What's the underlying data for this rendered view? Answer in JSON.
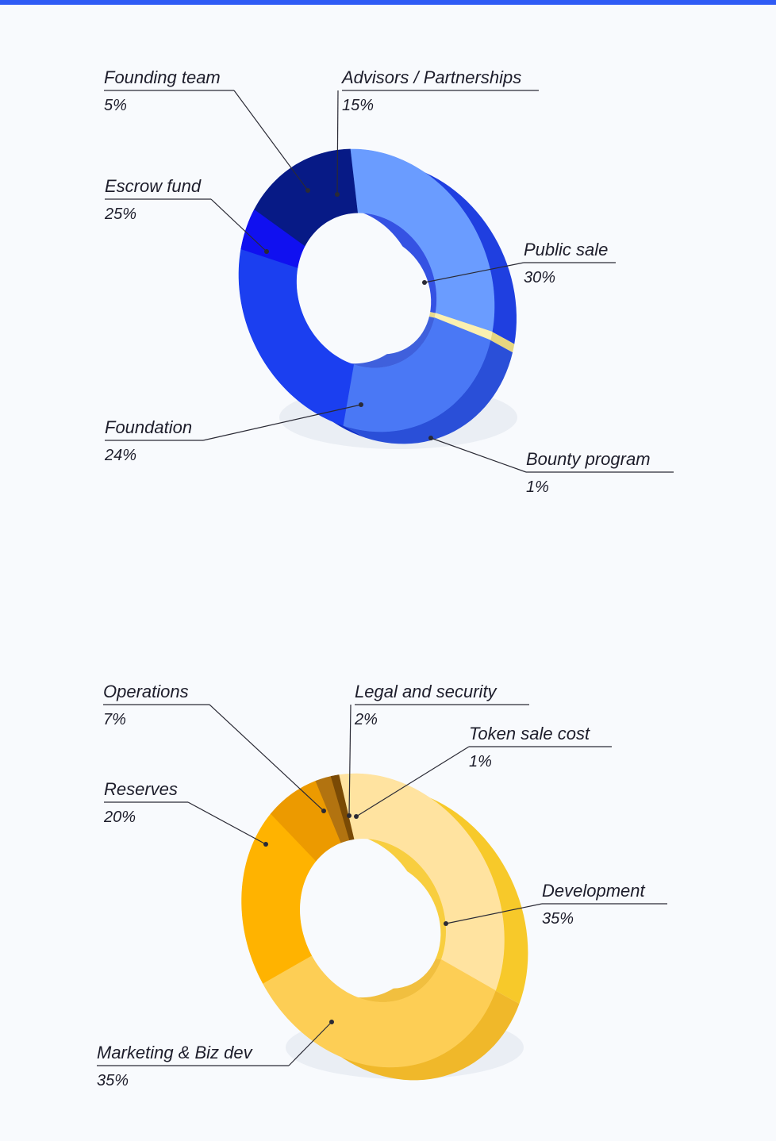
{
  "colors": {
    "top_bar": "#2f5bf5"
  },
  "chart_data": [
    {
      "type": "pie",
      "title": "",
      "slices": [
        {
          "label": "Public sale",
          "value": 30,
          "value_label": "30%",
          "color": "#6a9cff",
          "side": "#1f3fe0"
        },
        {
          "label": "Bounty program",
          "value": 1,
          "value_label": "1%",
          "color": "#fbf0b0",
          "side": "#e6d680"
        },
        {
          "label": "Foundation",
          "value": 24,
          "value_label": "24%",
          "color": "#4a78f5",
          "side": "#2a4fd8"
        },
        {
          "label": "Escrow fund",
          "value": 25,
          "value_label": "25%",
          "color": "#1b3ff0",
          "side": "#1030c8"
        },
        {
          "label": "Founding team",
          "value": 5,
          "value_label": "5%",
          "color": "#1010f0",
          "side": "#0a0ac0"
        },
        {
          "label": "Advisors / Partnerships",
          "value": 15,
          "value_label": "15%",
          "color": "#071a86",
          "side": "#05126a"
        }
      ]
    },
    {
      "type": "pie",
      "title": "",
      "slices": [
        {
          "label": "Development",
          "value": 35,
          "value_label": "35%",
          "color": "#ffe3a0",
          "side": "#f7c92a"
        },
        {
          "label": "Marketing & Biz dev",
          "value": 35,
          "value_label": "35%",
          "color": "#fdce55",
          "side": "#f0b82a"
        },
        {
          "label": "Reserves",
          "value": 20,
          "value_label": "20%",
          "color": "#ffb300",
          "side": "#e89a00"
        },
        {
          "label": "Operations",
          "value": 7,
          "value_label": "7%",
          "color": "#ec9a00",
          "side": "#c77d00"
        },
        {
          "label": "Legal and security",
          "value": 2,
          "value_label": "2%",
          "color": "#b27310",
          "side": "#8e5a0a"
        },
        {
          "label": "Token sale cost",
          "value": 1,
          "value_label": "1%",
          "color": "#7a4a05",
          "side": "#5c3804"
        }
      ]
    }
  ]
}
